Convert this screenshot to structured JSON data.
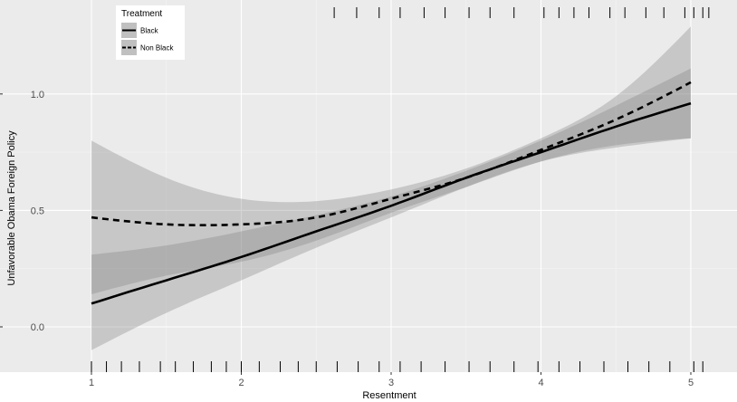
{
  "chart_data": {
    "type": "line",
    "xlabel": "Resentment",
    "ylabel": "Unfavorable Obama Foreign Policy",
    "xlim": [
      0.76,
      5.32
    ],
    "ylim": [
      -0.19,
      1.36
    ],
    "x_ticks": [
      1,
      2,
      3,
      4,
      5
    ],
    "x_tick_labels": [
      "1",
      "2",
      "3",
      "4",
      "5"
    ],
    "y_ticks": [
      0.0,
      0.5,
      1.0
    ],
    "y_tick_labels": [
      "0.0",
      "0.5",
      "1.0"
    ],
    "grid": true,
    "legend": {
      "title": "Treatment",
      "placement": "top-left",
      "entries": [
        "Black",
        "Non Black"
      ]
    },
    "series": [
      {
        "name": "Black",
        "style": "solid",
        "color": "#000000",
        "x": [
          1.0,
          1.5,
          2.0,
          2.5,
          3.0,
          3.5,
          4.0,
          4.5,
          5.0
        ],
        "y": [
          0.1,
          0.2,
          0.3,
          0.41,
          0.52,
          0.64,
          0.75,
          0.86,
          0.96
        ],
        "ci_lower": [
          -0.1,
          0.06,
          0.2,
          0.34,
          0.47,
          0.6,
          0.71,
          0.77,
          0.81
        ],
        "ci_upper": [
          0.31,
          0.35,
          0.41,
          0.48,
          0.56,
          0.67,
          0.8,
          0.95,
          1.11
        ]
      },
      {
        "name": "Non Black",
        "style": "dashed",
        "color": "#000000",
        "x": [
          1.0,
          1.5,
          2.0,
          2.5,
          3.0,
          3.5,
          4.0,
          4.5,
          5.0
        ],
        "y": [
          0.47,
          0.44,
          0.44,
          0.47,
          0.55,
          0.64,
          0.76,
          0.89,
          1.05
        ],
        "ci_lower": [
          0.14,
          0.22,
          0.28,
          0.37,
          0.49,
          0.6,
          0.71,
          0.78,
          0.81
        ],
        "ci_upper": [
          0.8,
          0.64,
          0.55,
          0.54,
          0.59,
          0.68,
          0.81,
          0.99,
          1.29
        ]
      }
    ],
    "rug_top": [
      2.62,
      2.77,
      2.92,
      3.06,
      3.22,
      3.36,
      3.52,
      3.66,
      3.82,
      4.02,
      4.12,
      4.22,
      4.32,
      4.46,
      4.56,
      4.7,
      4.82,
      4.96,
      5.02,
      5.08,
      5.12
    ],
    "rug_bottom": [
      1.0,
      1.1,
      1.2,
      1.32,
      1.46,
      1.56,
      1.68,
      1.8,
      1.9,
      2.0,
      2.12,
      2.26,
      2.38,
      2.5,
      2.64,
      2.78,
      2.92,
      3.06,
      3.2,
      3.36,
      3.52,
      3.66,
      3.82,
      3.98,
      4.12,
      4.26,
      4.42,
      4.58,
      4.72,
      4.86,
      5.02,
      5.08
    ],
    "colors": {
      "panel_background": "#ebebeb",
      "grid_major": "#ffffff",
      "grid_minor": "#f4f4f4",
      "ribbon": "#7f7f7f",
      "line": "#000000"
    }
  }
}
